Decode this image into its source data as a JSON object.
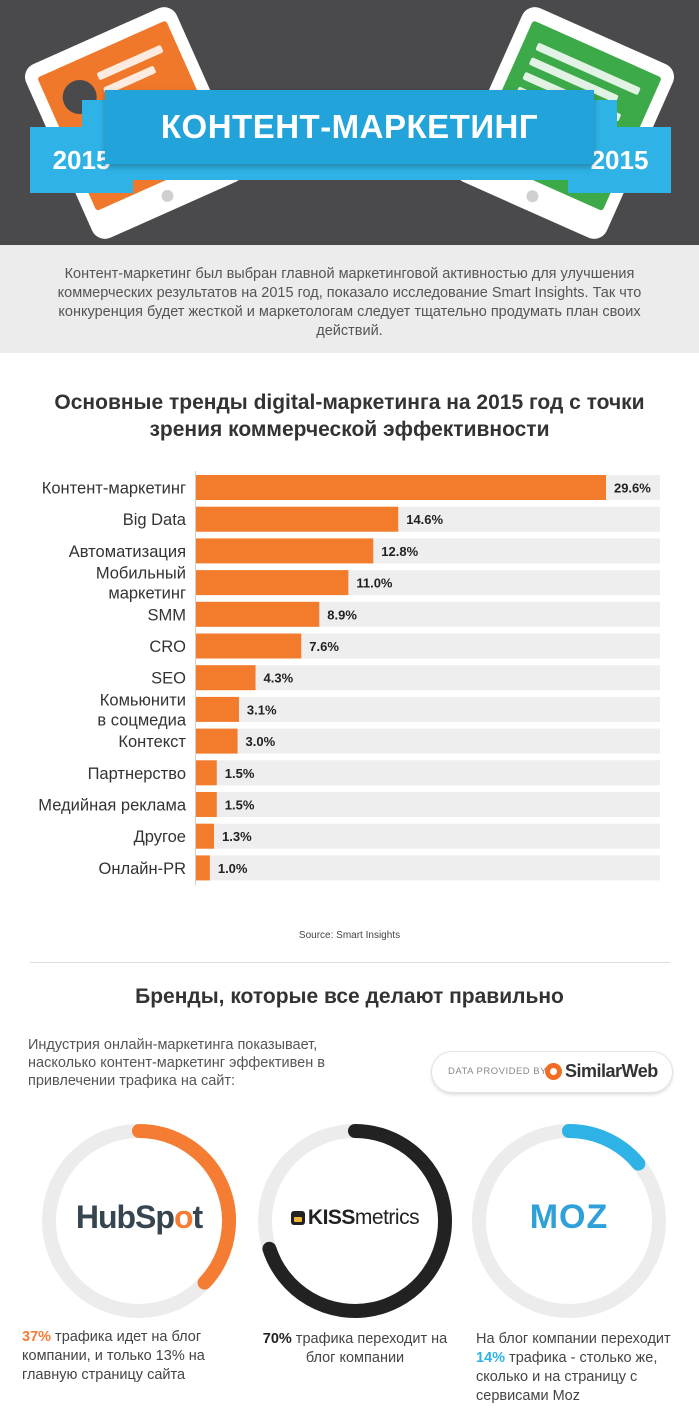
{
  "header": {
    "title": "КОНТЕНТ-МАРКЕТИНГ",
    "year_left": "2015",
    "year_right": "2015",
    "colors": {
      "background": "#4a4a4c",
      "ribbon": "#2fb3e6",
      "tablet_left": "#f0782a",
      "tablet_right": "#3daa4a"
    },
    "icons": {
      "left": "tablet-presentation-icon",
      "right": "tablet-document-icon"
    }
  },
  "intro": {
    "text": "Контент-маркетинг был выбран главной маркетинговой активностью для улучшения коммерческих результатов на 2015 год, показало исследование Smart Insights. Так что конкуренция будет жесткой и маркетологам следует тщательно продумать план своих действий."
  },
  "chart_data": {
    "type": "bar",
    "orientation": "horizontal",
    "title": "Основные тренды digital-маркетинга на 2015 год с точки зрения коммерческой эффективности",
    "categories": [
      "Контент-маркетинг",
      "Big Data",
      "Автоматизация",
      "Мобильный маркетинг",
      "SMM",
      "CRO",
      "SEO",
      "Комьюнити в соцмедиа",
      "Контекст",
      "Партнерство",
      "Медийная реклама",
      "Другое",
      "Онлайн-PR"
    ],
    "category_lines": [
      [
        "Контент-маркетинг"
      ],
      [
        "Big Data"
      ],
      [
        "Автоматизация"
      ],
      [
        "Мобильный",
        "маркетинг"
      ],
      [
        "SMM"
      ],
      [
        "CRO"
      ],
      [
        "SEO"
      ],
      [
        "Комьюнити",
        "в  соцмедиа"
      ],
      [
        "Контекст"
      ],
      [
        "Партнерство"
      ],
      [
        "Медийная реклама"
      ],
      [
        "Другое"
      ],
      [
        "Онлайн-PR"
      ]
    ],
    "values": [
      29.6,
      14.6,
      12.8,
      11.0,
      8.9,
      7.6,
      4.3,
      3.1,
      3.0,
      1.5,
      1.5,
      1.3,
      1.0
    ],
    "value_labels": [
      "29.6%",
      "14.6%",
      "12.8%",
      "11.0%",
      "8.9%",
      "7.6%",
      "4.3%",
      "3.1%",
      "3.0%",
      "1.5%",
      "1.5%",
      "1.3%",
      "1.0%"
    ],
    "xlim": [
      0,
      33.5
    ],
    "unit": "%",
    "grid": false,
    "colors": {
      "bar": "#f37c2c",
      "track": "#eeeeee"
    },
    "source": "Source: Smart Insights"
  },
  "brands": {
    "title": "Бренды, которые все делают правильно",
    "intro": "Индустрия онлайн-маркетинга показывает, насколько контент-маркетинг эффективен в привлечении трафика на сайт:",
    "badge": {
      "label": "DATA PROVIDED BY",
      "name": "SimilarWeb",
      "icon": "similarweb-logo-icon"
    },
    "items": [
      {
        "logo_a": "HubSp",
        "logo_b": "o",
        "logo_c": "t",
        "share": 0.37,
        "color": "#f57c33",
        "pct": "37%",
        "caption": " трафика идет на блог компании, и только 13% на главную страницу сайта"
      },
      {
        "logo_a": "KISS",
        "logo_b": "metrics",
        "share": 0.7,
        "color": "#222222",
        "pct": "70%",
        "caption": " трафика переходит на блог компании"
      },
      {
        "logo_a": "MOZ",
        "share": 0.14,
        "color": "#2fb3e6",
        "caption_a": "На блог компании переходит ",
        "pct": "14%",
        "caption": " трафика - столько же, сколько и на страницу с сервисами Moz"
      }
    ]
  }
}
